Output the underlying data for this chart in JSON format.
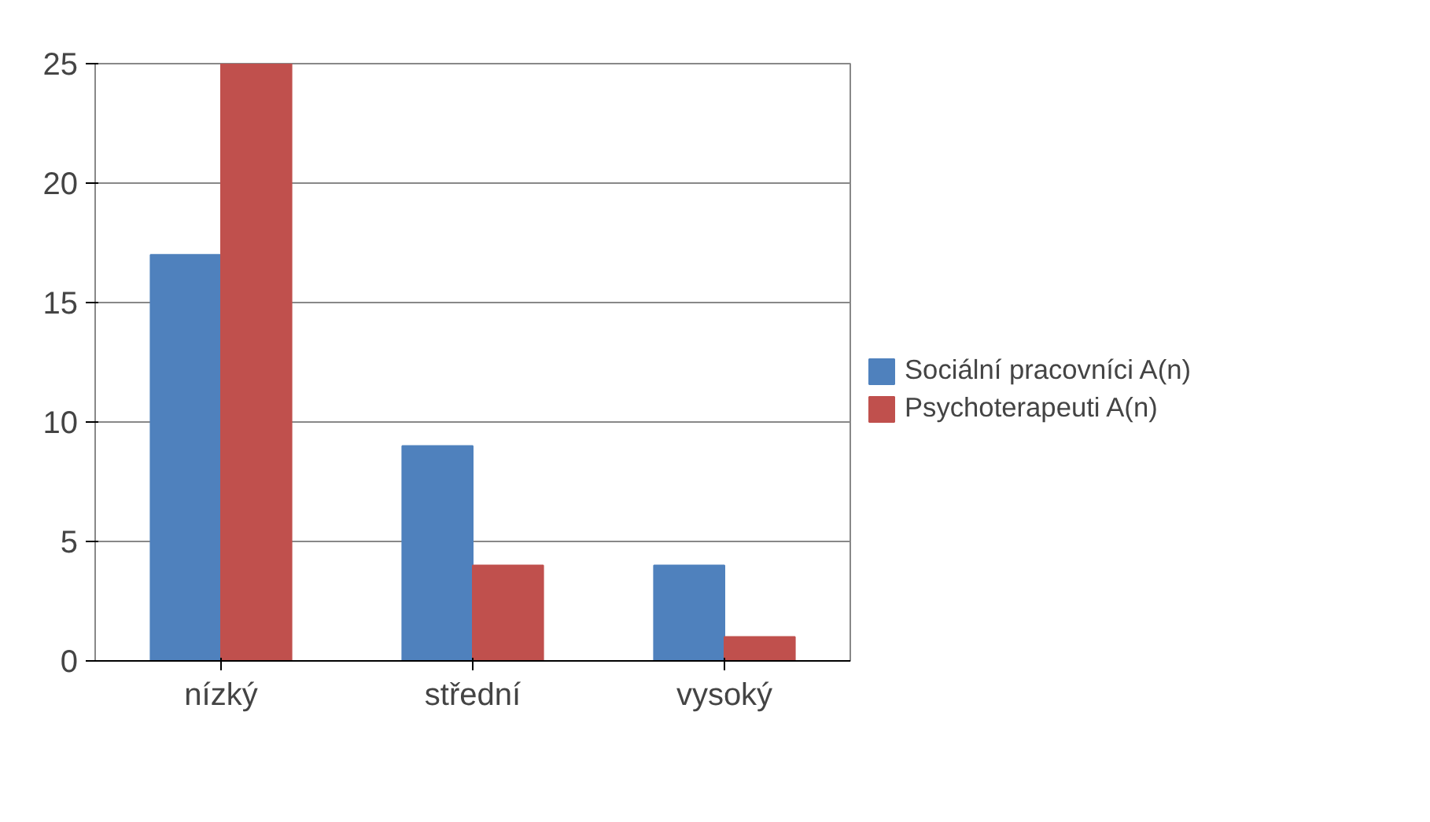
{
  "chart_data": {
    "type": "bar",
    "categories": [
      "nízký",
      "střední",
      "vysoký"
    ],
    "series": [
      {
        "name": "Sociální pracovníci A(n)",
        "color": "#4f81bd",
        "values": [
          17,
          9,
          4
        ]
      },
      {
        "name": "Psychoterapeuti A(n)",
        "color": "#c0504d",
        "values": [
          25,
          4,
          1
        ]
      }
    ],
    "ylim": [
      0,
      25
    ],
    "yticks": [
      0,
      5,
      10,
      15,
      20,
      25
    ],
    "grid": "y",
    "legend": "right"
  }
}
